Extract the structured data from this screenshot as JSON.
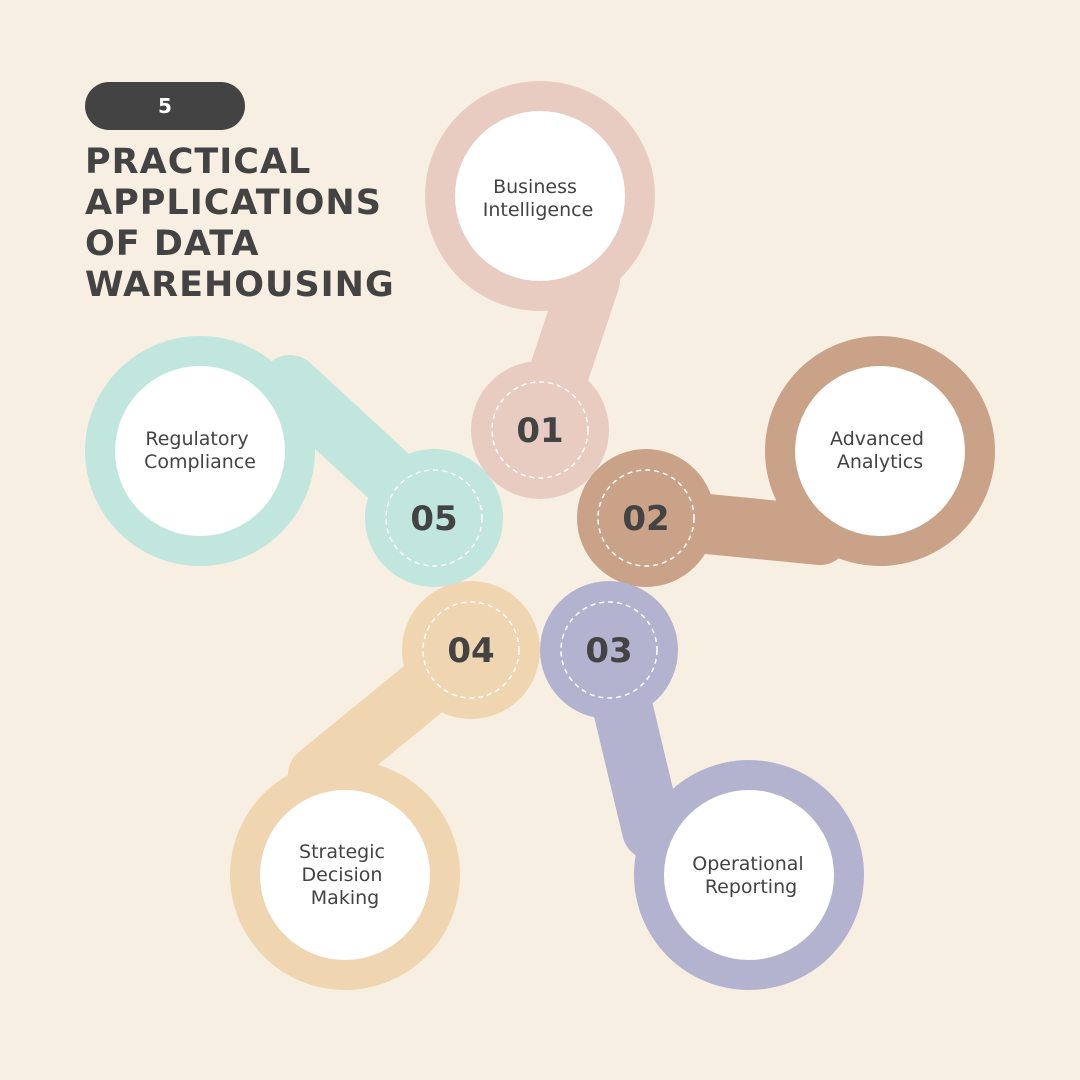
{
  "badge": "5",
  "title_lines": [
    "PRACTICAL",
    "APPLICATIONS",
    "OF DATA",
    "WAREHOUSING"
  ],
  "items": [
    {
      "number": "01",
      "label_lines": [
        "Business",
        "Intelligence"
      ],
      "color": "#e8ccc2"
    },
    {
      "number": "02",
      "label_lines": [
        "Advanced",
        "Analytics"
      ],
      "color": "#c9a287"
    },
    {
      "number": "03",
      "label_lines": [
        "Operational",
        "Reporting"
      ],
      "color": "#b3b3d0"
    },
    {
      "number": "04",
      "label_lines": [
        "Strategic",
        "Decision",
        "Making"
      ],
      "color": "#efd5b0"
    },
    {
      "number": "05",
      "label_lines": [
        "Regulatory",
        "Compliance"
      ],
      "color": "#c1e6dd"
    }
  ]
}
